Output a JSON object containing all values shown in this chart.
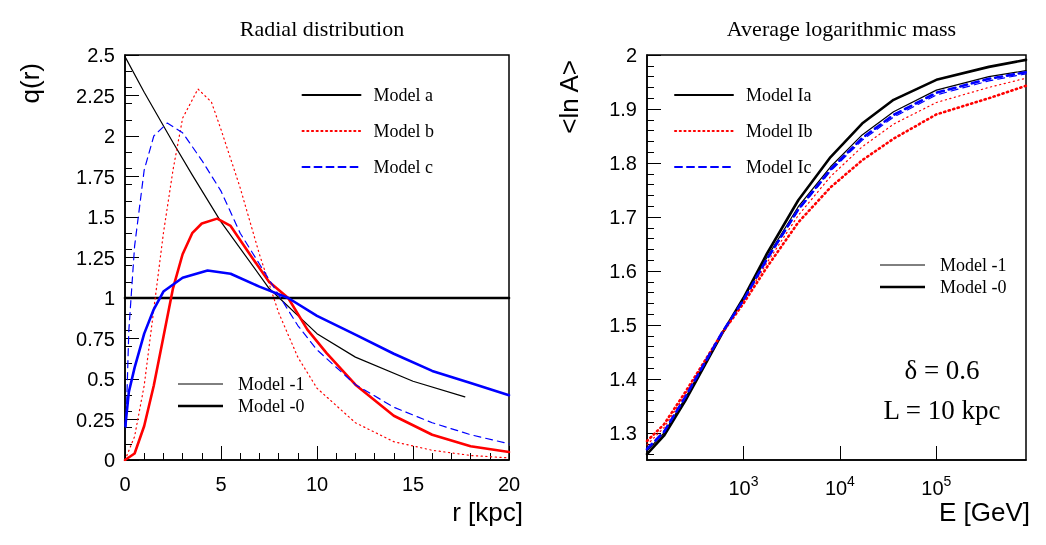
{
  "chart_data": [
    {
      "type": "line",
      "title": "Radial distribution",
      "xlabel": "r [kpc]",
      "ylabel": "q(r)",
      "xlim": [
        0,
        20
      ],
      "xticks": [
        0,
        5,
        10,
        15,
        20
      ],
      "ylim": [
        0,
        2.5
      ],
      "yticks": [
        0,
        0.25,
        0.5,
        0.75,
        1,
        1.25,
        1.5,
        1.75,
        2,
        2.25,
        2.5
      ],
      "grid": false,
      "legend": "top right",
      "marker": "none",
      "annotations": [
        "Model -1",
        "Model -0"
      ],
      "series": [
        {
          "name": "Model a",
          "color": "#000000",
          "line_style": "solid",
          "x": [
            0,
            1,
            2.5,
            3.5,
            5,
            7.5,
            10,
            12,
            15,
            17.7
          ],
          "values": [
            2.49,
            2.27,
            1.96,
            1.76,
            1.47,
            1.06,
            0.78,
            0.635,
            0.486,
            0.39
          ]
        },
        {
          "color": "#000000",
          "line_style": "solid",
          "x": [
            0,
            20
          ],
          "values": [
            1,
            1
          ]
        },
        {
          "name": "Model b",
          "color": "#ff0000",
          "line_style": "dotted",
          "x": [
            0,
            0.5,
            1,
            1.5,
            2,
            2.5,
            3,
            3.8,
            4.5,
            5,
            6,
            7,
            8,
            9,
            10,
            12,
            14,
            16,
            18,
            20
          ],
          "values": [
            0,
            0.145,
            0.46,
            0.93,
            1.4,
            1.79,
            2.11,
            2.29,
            2.21,
            2.04,
            1.68,
            1.27,
            0.91,
            0.635,
            0.443,
            0.23,
            0.113,
            0.06,
            0.028,
            0.013
          ]
        },
        {
          "color": "#ff0000",
          "line_style": "solid",
          "x": [
            0,
            0.5,
            1,
            1.5,
            2,
            2.5,
            3,
            3.5,
            4,
            4.8,
            5.5,
            6.5,
            7.5,
            8.5,
            9.5,
            10.5,
            12,
            14,
            16,
            18,
            20
          ],
          "values": [
            0,
            0.04,
            0.21,
            0.46,
            0.76,
            1.06,
            1.27,
            1.4,
            1.46,
            1.49,
            1.445,
            1.27,
            1.1,
            1.0,
            0.805,
            0.66,
            0.465,
            0.273,
            0.156,
            0.085,
            0.049
          ]
        },
        {
          "name": "Model c",
          "color": "#0000ff",
          "line_style": "dashed",
          "x": [
            0.05,
            0.2,
            0.5,
            1,
            1.5,
            2.2,
            3,
            4,
            5,
            6,
            7,
            8,
            9,
            10,
            12,
            14,
            16,
            18,
            20
          ],
          "values": [
            0.2,
            0.8,
            1.32,
            1.79,
            2.0,
            2.08,
            2.02,
            1.85,
            1.66,
            1.4,
            1.21,
            1.02,
            0.83,
            0.68,
            0.465,
            0.326,
            0.23,
            0.156,
            0.1
          ]
        },
        {
          "color": "#0000ff",
          "line_style": "solid",
          "x": [
            0.02,
            0.2,
            0.5,
            1,
            1.5,
            2,
            3,
            4.3,
            5.5,
            7,
            8.5,
            10,
            12,
            14,
            16,
            18,
            20
          ],
          "values": [
            0.21,
            0.42,
            0.57,
            0.78,
            0.93,
            1.04,
            1.125,
            1.17,
            1.15,
            1.07,
            1.0,
            0.89,
            0.774,
            0.656,
            0.55,
            0.475,
            0.4
          ]
        }
      ]
    },
    {
      "type": "line",
      "title": "Average logarithmic mass",
      "xlabel": "E [GeV]",
      "ylabel": "<ln A>",
      "log": "x",
      "xlim": [
        100,
        850000
      ],
      "xticks": [
        {
          "value": 1000,
          "label": "10$^{3}$"
        },
        {
          "value": 10000,
          "label": "10$^{4}$"
        },
        {
          "value": 100000,
          "label": "10$^{5}$"
        }
      ],
      "ylim": [
        1.25,
        2
      ],
      "yticks": [
        1.3,
        1.4,
        1.5,
        1.6,
        1.7,
        1.8,
        1.9,
        2
      ],
      "grid": false,
      "legend": "top left",
      "marker": "none",
      "annotations": [
        "Model -1",
        "Model -0",
        "δ = 0.6",
        "L = 10 kpc"
      ],
      "series": [
        {
          "color": "#000000",
          "line_style": "solid",
          "x": [
            100,
            150,
            250,
            600,
            1000,
            1750,
            3700,
            8000,
            17000,
            36000,
            100000,
            350000,
            850000
          ],
          "values": [
            1.267,
            1.3,
            1.365,
            1.486,
            1.548,
            1.625,
            1.719,
            1.793,
            1.852,
            1.895,
            1.935,
            1.96,
            1.971
          ]
        },
        {
          "name": "Model Ia",
          "color": "#000000",
          "line_style": "solid",
          "x": [
            100,
            150,
            250,
            600,
            1000,
            1750,
            3700,
            8000,
            17000,
            36000,
            100000,
            350000,
            850000
          ],
          "values": [
            1.261,
            1.295,
            1.36,
            1.484,
            1.55,
            1.632,
            1.731,
            1.811,
            1.873,
            1.917,
            1.954,
            1.978,
            1.991
          ]
        },
        {
          "color": "#ff0000",
          "line_style": "dotted",
          "x": [
            100,
            150,
            250,
            600,
            1000,
            1750,
            3700,
            8000,
            17000,
            36000,
            100000,
            350000,
            850000
          ],
          "values": [
            1.278,
            1.31,
            1.372,
            1.487,
            1.544,
            1.615,
            1.703,
            1.775,
            1.83,
            1.872,
            1.912,
            1.94,
            1.957
          ]
        },
        {
          "name": "Model Ib",
          "color": "#ff0000",
          "line_style": "dotted",
          "x": [
            100,
            150,
            250,
            600,
            1000,
            1750,
            3700,
            8000,
            17000,
            36000,
            100000,
            350000,
            850000
          ],
          "values": [
            1.285,
            1.316,
            1.376,
            1.485,
            1.54,
            1.607,
            1.69,
            1.755,
            1.805,
            1.845,
            1.89,
            1.92,
            1.943
          ]
        },
        {
          "color": "#0000ff",
          "line_style": "dashed",
          "x": [
            100,
            150,
            250,
            600,
            1000,
            1750,
            3700,
            8000,
            17000,
            36000,
            100000,
            350000,
            850000
          ],
          "values": [
            1.272,
            1.304,
            1.368,
            1.486,
            1.546,
            1.62,
            1.712,
            1.785,
            1.842,
            1.885,
            1.926,
            1.952,
            1.965
          ]
        },
        {
          "name": "Model Ic",
          "color": "#0000ff",
          "line_style": "dashed",
          "x": [
            100,
            150,
            250,
            600,
            1000,
            1750,
            3700,
            8000,
            17000,
            36000,
            100000,
            350000,
            850000
          ],
          "values": [
            1.27,
            1.302,
            1.367,
            1.486,
            1.546,
            1.622,
            1.714,
            1.788,
            1.846,
            1.889,
            1.93,
            1.956,
            1.968
          ]
        }
      ]
    }
  ]
}
